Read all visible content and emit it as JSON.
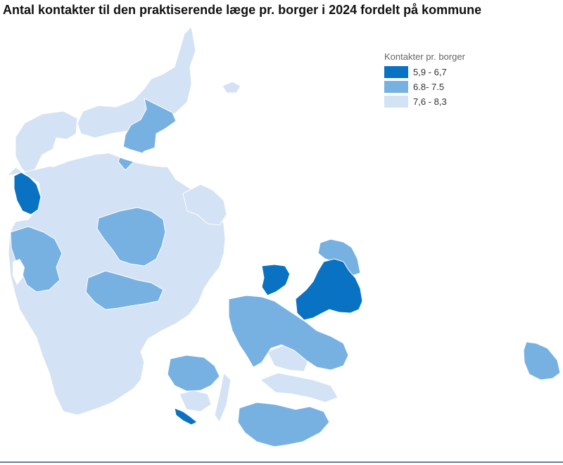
{
  "title": "Antal kontakter til den praktiserende læge pr. borger i 2024 fordelt på kommune",
  "legend": {
    "title": "Kontakter pr. borger",
    "items": [
      {
        "label": "5,9 - 6,7",
        "color": "#0a72c2"
      },
      {
        "label": "6.8- 7.5",
        "color": "#77b1e2"
      },
      {
        "label": "7,6 - 8,3",
        "color": "#d3e2f5"
      }
    ]
  },
  "colors": {
    "light": "#d3e2f5",
    "medium": "#77b1e2",
    "dark": "#0a72c2",
    "border": "#ffffff",
    "baseline": "#6b7f95"
  }
}
